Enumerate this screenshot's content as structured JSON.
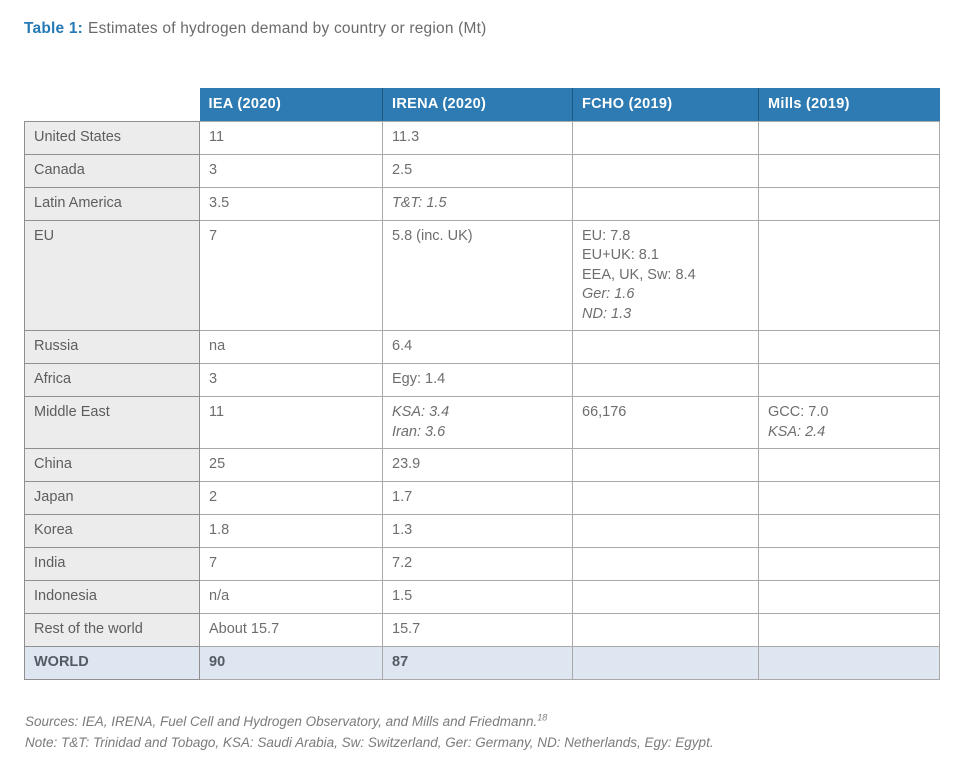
{
  "title": {
    "label": "Table 1:",
    "text": "Estimates of hydrogen demand by country or region (Mt)"
  },
  "colors": {
    "title_accent": "#2579b5",
    "header_bg": "#2d7bb2",
    "header_text": "#ffffff",
    "label_bg": "#ececec",
    "world_row_bg": "#dde6f1",
    "body_text": "#6e6e6e"
  },
  "table": {
    "columns": [
      "IEA (2020)",
      "IRENA (2020)",
      "FCHO (2019)",
      "Mills (2019)"
    ],
    "rows": [
      {
        "label": "United States",
        "cells": [
          [
            {
              "text": "11"
            }
          ],
          [
            {
              "text": "11.3"
            }
          ],
          [],
          []
        ]
      },
      {
        "label": "Canada",
        "cells": [
          [
            {
              "text": "3"
            }
          ],
          [
            {
              "text": "2.5"
            }
          ],
          [],
          []
        ]
      },
      {
        "label": "Latin America",
        "cells": [
          [
            {
              "text": "3.5"
            }
          ],
          [
            {
              "text": "T&T: 1.5",
              "italic": true
            }
          ],
          [],
          []
        ]
      },
      {
        "label": "EU",
        "cells": [
          [
            {
              "text": "7"
            }
          ],
          [
            {
              "text": "5.8 (inc. UK)"
            }
          ],
          [
            {
              "text": "EU: 7.8"
            },
            {
              "text": "EU+UK: 8.1"
            },
            {
              "text": "EEA, UK, Sw: 8.4"
            },
            {
              "text": "Ger: 1.6",
              "italic": true
            },
            {
              "text": "ND: 1.3",
              "italic": true
            }
          ],
          []
        ]
      },
      {
        "label": "Russia",
        "cells": [
          [
            {
              "text": "na"
            }
          ],
          [
            {
              "text": "6.4"
            }
          ],
          [],
          []
        ]
      },
      {
        "label": "Africa",
        "cells": [
          [
            {
              "text": "3"
            }
          ],
          [
            {
              "text": "Egy: 1.4"
            }
          ],
          [],
          []
        ]
      },
      {
        "label": "Middle East",
        "cells": [
          [
            {
              "text": "11"
            }
          ],
          [
            {
              "text": "KSA: 3.4",
              "italic": true
            },
            {
              "text": "Iran: 3.6",
              "italic": true
            }
          ],
          [
            {
              "text": "66,176"
            }
          ],
          [
            {
              "text": "GCC: 7.0"
            },
            {
              "text": "KSA: 2.4",
              "italic": true
            }
          ]
        ]
      },
      {
        "label": "China",
        "cells": [
          [
            {
              "text": "25"
            }
          ],
          [
            {
              "text": "23.9"
            }
          ],
          [],
          []
        ]
      },
      {
        "label": "Japan",
        "cells": [
          [
            {
              "text": "2"
            }
          ],
          [
            {
              "text": "1.7"
            }
          ],
          [],
          []
        ]
      },
      {
        "label": "Korea",
        "cells": [
          [
            {
              "text": "1.8"
            }
          ],
          [
            {
              "text": "1.3"
            }
          ],
          [],
          []
        ]
      },
      {
        "label": "India",
        "cells": [
          [
            {
              "text": "7"
            }
          ],
          [
            {
              "text": "7.2"
            }
          ],
          [],
          []
        ]
      },
      {
        "label": "Indonesia",
        "cells": [
          [
            {
              "text": "n/a"
            }
          ],
          [
            {
              "text": "1.5"
            }
          ],
          [],
          []
        ]
      },
      {
        "label": "Rest of the world",
        "cells": [
          [
            {
              "text": "About 15.7"
            }
          ],
          [
            {
              "text": "15.7"
            }
          ],
          [],
          []
        ]
      },
      {
        "label": "WORLD",
        "highlight": true,
        "cells": [
          [
            {
              "text": "90"
            }
          ],
          [
            {
              "text": "87"
            }
          ],
          [],
          []
        ]
      }
    ]
  },
  "footnotes": {
    "sources": "Sources: IEA, IRENA, Fuel Cell and Hydrogen Observatory, and Mills and Friedmann.",
    "sources_ref": "18",
    "note": "Note: T&T: Trinidad and Tobago, KSA: Saudi Arabia, Sw: Switzerland, Ger: Germany, ND: Netherlands, Egy: Egypt."
  }
}
